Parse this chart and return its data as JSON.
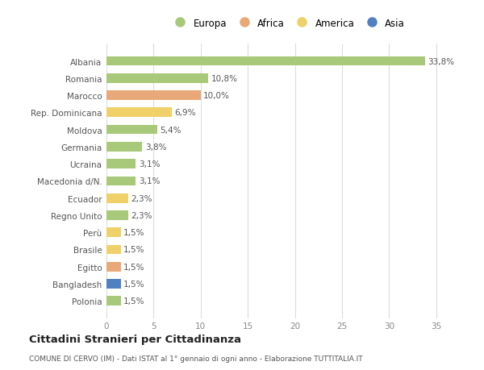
{
  "countries": [
    "Albania",
    "Romania",
    "Marocco",
    "Rep. Dominicana",
    "Moldova",
    "Germania",
    "Ucraina",
    "Macedonia d/N.",
    "Ecuador",
    "Regno Unito",
    "Perù",
    "Brasile",
    "Egitto",
    "Bangladesh",
    "Polonia"
  ],
  "values": [
    33.8,
    10.8,
    10.0,
    6.9,
    5.4,
    3.8,
    3.1,
    3.1,
    2.3,
    2.3,
    1.5,
    1.5,
    1.5,
    1.5,
    1.5
  ],
  "labels": [
    "33,8%",
    "10,8%",
    "10,0%",
    "6,9%",
    "5,4%",
    "3,8%",
    "3,1%",
    "3,1%",
    "2,3%",
    "2,3%",
    "1,5%",
    "1,5%",
    "1,5%",
    "1,5%",
    "1,5%"
  ],
  "continents": [
    "Europa",
    "Europa",
    "Africa",
    "America",
    "Europa",
    "Europa",
    "Europa",
    "Europa",
    "America",
    "Europa",
    "America",
    "America",
    "Africa",
    "Asia",
    "Europa"
  ],
  "colors": {
    "Europa": "#a8c87a",
    "Africa": "#e8a878",
    "America": "#f0d068",
    "Asia": "#5080c0"
  },
  "title": "Cittadini Stranieri per Cittadinanza",
  "subtitle": "COMUNE DI CERVO (IM) - Dati ISTAT al 1° gennaio di ogni anno - Elaborazione TUTTITALIA.IT",
  "xlim": [
    0,
    37
  ],
  "xticks": [
    0,
    5,
    10,
    15,
    20,
    25,
    30,
    35
  ],
  "background_color": "#ffffff",
  "bar_height": 0.55
}
